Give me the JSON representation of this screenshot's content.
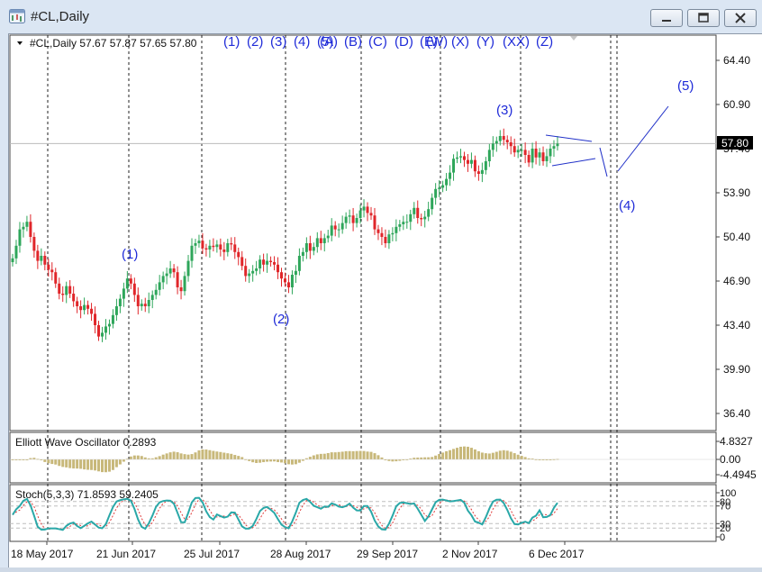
{
  "window": {
    "title": "#CL,Daily",
    "icon": "chart-window-icon"
  },
  "main_chart": {
    "header": "#CL,Daily  57.67 57.87 57.65 57.80",
    "current_price": "57.80",
    "price_ticks": [
      "64.40",
      "60.90",
      "57.40",
      "53.90",
      "50.40",
      "46.90",
      "43.40",
      "39.90",
      "36.40"
    ],
    "top_wave_labels": [
      "(1)",
      "(2)",
      "(3)",
      "(4)",
      "(5)",
      "(A)",
      "(B)",
      "(C)",
      "(D)",
      "(E)",
      "(W)",
      "(X)",
      "(Y)",
      "(XX)",
      "(Z)"
    ],
    "wave_labels": [
      "(1)",
      "(2)",
      "(3)",
      "(4)",
      "(5)"
    ]
  },
  "oscillator": {
    "header": "Elliott Wave Oscillator 0.2893",
    "ticks": [
      "4.8327",
      "0.00",
      "-4.4945"
    ]
  },
  "stochastic": {
    "header": "Stoch(5,3,3) 71.8593 59.2405",
    "ticks": [
      "100",
      "80",
      "70",
      "30",
      "20",
      "0"
    ]
  },
  "date_labels": [
    "18 May 2017",
    "21 Jun 2017",
    "25 Jul 2017",
    "28 Aug 2017",
    "29 Sep 2017",
    "2 Nov 2017",
    "6 Dec 2017"
  ],
  "colors": {
    "bull": "#2ea65a",
    "bear": "#e0262a",
    "wave_label": "#1f2bd8",
    "oscillator_bar": "#c8b87a",
    "stoch_main": "#2aa8a8",
    "stoch_signal": "#e03a3a"
  },
  "chart_data": {
    "type": "candlestick",
    "closes": [
      48.7,
      49.7,
      51.0,
      51.2,
      51.6,
      50.4,
      49.3,
      48.5,
      48.9,
      48.2,
      47.8,
      47.6,
      46.7,
      45.9,
      45.8,
      46.5,
      45.9,
      45.3,
      44.9,
      44.6,
      45.0,
      44.7,
      44.3,
      43.4,
      42.5,
      42.8,
      43.3,
      43.5,
      44.2,
      44.9,
      45.5,
      46.3,
      47.1,
      46.7,
      45.8,
      44.9,
      45.1,
      44.9,
      45.4,
      45.8,
      46.2,
      46.8,
      47.3,
      47.5,
      47.9,
      47.6,
      46.4,
      46.1,
      47.3,
      48.5,
      49.7,
      49.9,
      50.1,
      49.5,
      49.4,
      49.7,
      49.6,
      49.8,
      49.4,
      49.2,
      49.9,
      49.8,
      49.2,
      48.8,
      48.1,
      47.3,
      47.5,
      47.7,
      47.9,
      48.6,
      48.2,
      48.5,
      48.4,
      48.2,
      47.6,
      47.1,
      46.8,
      46.4,
      47.4,
      47.7,
      48.9,
      49.2,
      49.9,
      49.3,
      49.6,
      50.3,
      49.9,
      50.3,
      50.5,
      51.3,
      51.0,
      51.0,
      51.5,
      52.0,
      52.1,
      51.5,
      51.9,
      52.5,
      52.8,
      52.3,
      52.1,
      51.0,
      50.7,
      50.4,
      49.9,
      50.6,
      50.7,
      51.2,
      51.4,
      51.6,
      51.6,
      52.2,
      52.7,
      51.9,
      51.8,
      52.0,
      52.6,
      53.5,
      54.2,
      54.3,
      54.5,
      55.0,
      55.5,
      56.6,
      56.7,
      56.8,
      56.5,
      56.2,
      56.5,
      55.6,
      55.4,
      55.7,
      56.4,
      57.3,
      57.8,
      58.0,
      58.4,
      58.1,
      57.9,
      57.6,
      57.1,
      57.3,
      57.3,
      56.9,
      56.3,
      57.4,
      56.7,
      57.1,
      56.4,
      56.8,
      57.4,
      57.6,
      57.8
    ],
    "xlim_dates": [
      "18 May 2017",
      "6 Dec 2017"
    ],
    "ylim": [
      36.4,
      64.4
    ],
    "annotations": [
      "(1)",
      "(2)",
      "(3)",
      "(4)",
      "(5)"
    ]
  }
}
